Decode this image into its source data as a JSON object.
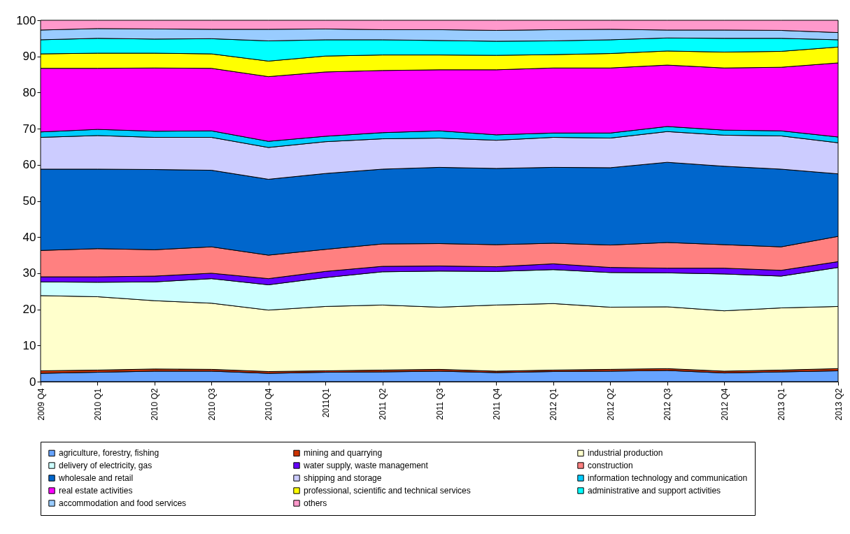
{
  "chart_data": {
    "type": "area",
    "stacked": true,
    "categories": [
      "2009 Q4",
      "2010 Q1",
      "2010 Q2",
      "2010 Q3",
      "2010 Q4",
      "2011Q1",
      "2011 Q2",
      "2011 Q3",
      "2011 Q4",
      "2012 Q1",
      "2012 Q2",
      "2012 Q3",
      "2012 Q4",
      "2013 Q1",
      "2013 Q2"
    ],
    "ylim": [
      0,
      100
    ],
    "yticks": [
      0,
      10,
      20,
      30,
      40,
      50,
      60,
      70,
      80,
      90,
      100
    ],
    "legend": "bottom",
    "series": [
      {
        "name": "agriculture, forestry, fishing",
        "color": "#66a3ff",
        "values": [
          2.3,
          2.6,
          2.9,
          2.9,
          2.3,
          2.6,
          2.7,
          2.9,
          2.5,
          2.8,
          2.9,
          3.1,
          2.4,
          2.7,
          3.0
        ]
      },
      {
        "name": "mining and quarrying",
        "color": "#cc3300",
        "values": [
          0.7,
          0.6,
          0.6,
          0.5,
          0.5,
          0.4,
          0.5,
          0.5,
          0.4,
          0.4,
          0.5,
          0.5,
          0.5,
          0.5,
          0.6
        ]
      },
      {
        "name": "industrial production",
        "color": "#ffffcc",
        "values": [
          20.8,
          20.3,
          18.9,
          18.3,
          17.0,
          17.8,
          18.0,
          17.2,
          18.3,
          18.4,
          17.2,
          17.1,
          16.7,
          17.2,
          17.2
        ]
      },
      {
        "name": "delivery of electricity, gas",
        "color": "#ccffff",
        "values": [
          3.8,
          4.0,
          5.2,
          6.8,
          7.0,
          8.0,
          9.2,
          10.0,
          9.3,
          9.4,
          9.6,
          9.4,
          10.2,
          8.8,
          10.8
        ]
      },
      {
        "name": "water supply, waste management",
        "color": "#6600ff",
        "values": [
          1.4,
          1.5,
          1.6,
          1.5,
          1.7,
          1.7,
          1.5,
          1.4,
          1.3,
          1.6,
          1.4,
          1.3,
          1.6,
          1.6,
          1.6
        ]
      },
      {
        "name": "construction",
        "color": "#ff8080",
        "values": [
          7.3,
          7.8,
          7.3,
          7.3,
          6.5,
          6.1,
          6.2,
          6.2,
          6.1,
          5.7,
          6.2,
          7.1,
          6.5,
          6.5,
          7.0
        ]
      },
      {
        "name": "wholesale and retail",
        "color": "#0066cc",
        "values": [
          22.5,
          22.0,
          22.2,
          21.2,
          21.0,
          21.0,
          20.7,
          21.1,
          21.1,
          21.0,
          21.4,
          22.2,
          21.7,
          21.5,
          17.3
        ]
      },
      {
        "name": "shipping and storage",
        "color": "#ccccff",
        "values": [
          8.8,
          9.3,
          8.9,
          9.1,
          8.8,
          8.8,
          8.4,
          8.1,
          7.8,
          8.3,
          8.2,
          8.5,
          8.6,
          9.2,
          8.6
        ]
      },
      {
        "name": "information technology and communication",
        "color": "#00ccff",
        "values": [
          1.5,
          1.7,
          1.7,
          1.8,
          1.7,
          1.5,
          1.7,
          2.0,
          1.5,
          1.2,
          1.4,
          1.4,
          1.4,
          1.4,
          1.6
        ]
      },
      {
        "name": "real estate activities",
        "color": "#ff00ff",
        "values": [
          17.6,
          16.9,
          17.5,
          17.3,
          17.9,
          17.8,
          17.2,
          16.9,
          18.0,
          18.0,
          18.0,
          17.0,
          17.2,
          17.6,
          20.5
        ]
      },
      {
        "name": "professional, scientific and technical services",
        "color": "#ffff00",
        "values": [
          4.0,
          4.2,
          4.1,
          4.0,
          4.3,
          4.4,
          4.3,
          4.1,
          4.0,
          3.7,
          4.0,
          3.9,
          4.4,
          4.4,
          4.4
        ]
      },
      {
        "name": "administrative and support activities",
        "color": "#00ffff",
        "values": [
          3.9,
          4.1,
          3.9,
          4.2,
          5.6,
          4.5,
          4.2,
          4.0,
          3.9,
          3.8,
          3.8,
          3.6,
          3.8,
          3.6,
          2.0
        ]
      },
      {
        "name": "accommodation and food services",
        "color": "#99ccff",
        "values": [
          2.7,
          2.7,
          2.8,
          2.6,
          3.2,
          3.0,
          2.8,
          3.0,
          3.0,
          3.1,
          2.9,
          2.2,
          2.3,
          2.2,
          2.0
        ]
      },
      {
        "name": "others",
        "color": "#ff99cc",
        "values": [
          2.7,
          2.3,
          2.4,
          2.5,
          2.5,
          2.4,
          2.6,
          2.6,
          2.8,
          2.6,
          2.5,
          2.7,
          2.7,
          2.8,
          3.4
        ]
      }
    ]
  }
}
